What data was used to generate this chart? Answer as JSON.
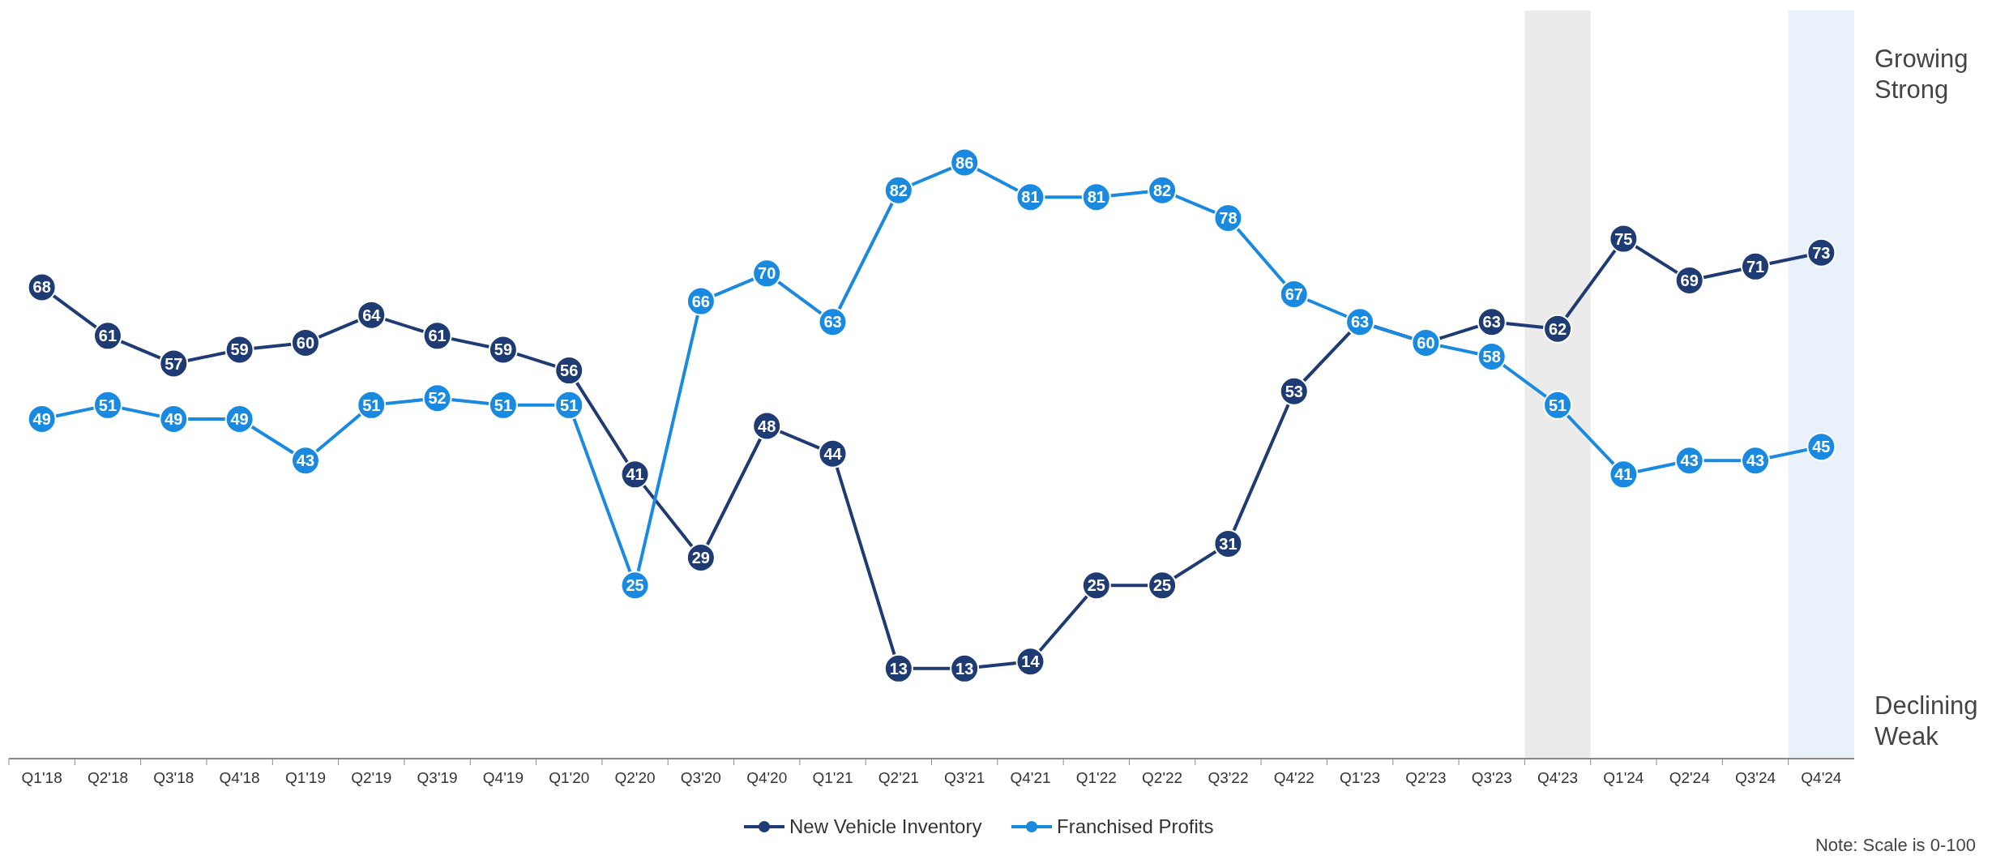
{
  "chart_data": {
    "type": "line",
    "categories": [
      "Q1'18",
      "Q2'18",
      "Q3'18",
      "Q4'18",
      "Q1'19",
      "Q2'19",
      "Q3'19",
      "Q4'19",
      "Q1'20",
      "Q2'20",
      "Q3'20",
      "Q4'20",
      "Q1'21",
      "Q2'21",
      "Q3'21",
      "Q4'21",
      "Q1'22",
      "Q2'22",
      "Q3'22",
      "Q4'22",
      "Q1'23",
      "Q2'23",
      "Q3'23",
      "Q4'23",
      "Q1'24",
      "Q2'24",
      "Q3'24",
      "Q4'24"
    ],
    "series": [
      {
        "name": "New Vehicle Inventory",
        "color": "#1f3b73",
        "values": [
          68,
          61,
          57,
          59,
          60,
          64,
          61,
          59,
          56,
          41,
          29,
          48,
          44,
          13,
          13,
          14,
          25,
          25,
          31,
          53,
          63,
          60,
          63,
          62,
          75,
          69,
          71,
          73
        ],
        "value_labels": [
          "68",
          "61",
          "57",
          "59",
          "60",
          "64",
          "61",
          "59",
          "56",
          "41",
          "29",
          "48",
          "44",
          "13",
          "13",
          "14",
          "25",
          "25",
          "31",
          "53",
          null,
          null,
          "63",
          "62",
          "75",
          "69",
          "71",
          "73"
        ]
      },
      {
        "name": "Franchised Profits",
        "color": "#1a8ae0",
        "values": [
          49,
          51,
          49,
          49,
          43,
          51,
          52,
          51,
          51,
          25,
          66,
          70,
          63,
          82,
          86,
          81,
          81,
          82,
          78,
          67,
          63,
          60,
          58,
          51,
          41,
          43,
          43,
          45
        ],
        "value_labels": [
          "49",
          "51",
          "49",
          "49",
          "43",
          "51",
          "52",
          "51",
          "51",
          "25",
          "66",
          "70",
          "63",
          "82",
          "86",
          "81",
          "81",
          "82",
          "78",
          "67",
          "63",
          "60",
          "58",
          "51",
          "41",
          "43",
          "43",
          "45"
        ]
      }
    ],
    "tick_labels": "x",
    "marker": "circle",
    "legend": "bottom",
    "bands": [
      {
        "axis": "x",
        "from": "Q4'23",
        "to": "Q4'23",
        "color": "#ebebeb"
      },
      {
        "axis": "x",
        "from": "Q4'24",
        "to": "Q4'24",
        "color": "#e9f2fb"
      }
    ],
    "annotations": [
      "Growing\nStrong",
      "Declining\nWeak",
      "Note: Scale is 0-100"
    ]
  }
}
